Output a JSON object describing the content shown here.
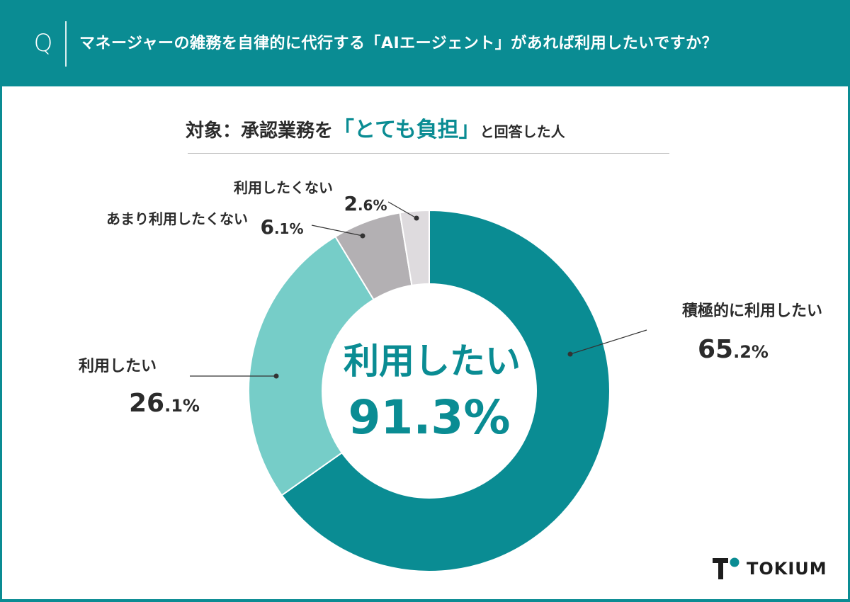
{
  "header": {
    "q_mark": "Q",
    "question": "マネージャーの雑務を自律的に代行する「AIエージェント」があれば利用したいですか？"
  },
  "subtitle": {
    "prefix": "対象：承認業務を",
    "highlight": "「とても負担」",
    "suffix": "と回答した人"
  },
  "chart_data": {
    "type": "pie",
    "variant": "donut",
    "center": {
      "label": "利用したい",
      "value": "91.3%"
    },
    "slices": [
      {
        "label": "積極的に利用したい",
        "value": 65.2,
        "value_int": "65",
        "value_dec": ".2%",
        "color": "#0a8c93"
      },
      {
        "label": "利用したい",
        "value": 26.1,
        "value_int": "26",
        "value_dec": ".1%",
        "color": "#76cdc8"
      },
      {
        "label": "あまり利用したくない",
        "value": 6.1,
        "value_int": "6",
        "value_dec": ".1%",
        "color": "#b3b0b3"
      },
      {
        "label": "利用したくない",
        "value": 2.6,
        "value_int": "2",
        "value_dec": ".6%",
        "color": "#dedbde"
      }
    ]
  },
  "logo": {
    "text": "TOKIUM"
  },
  "colors": {
    "accent": "#0a8c93",
    "light_teal": "#76cdc8",
    "gray": "#b3b0b3",
    "light_gray": "#dedbde"
  }
}
